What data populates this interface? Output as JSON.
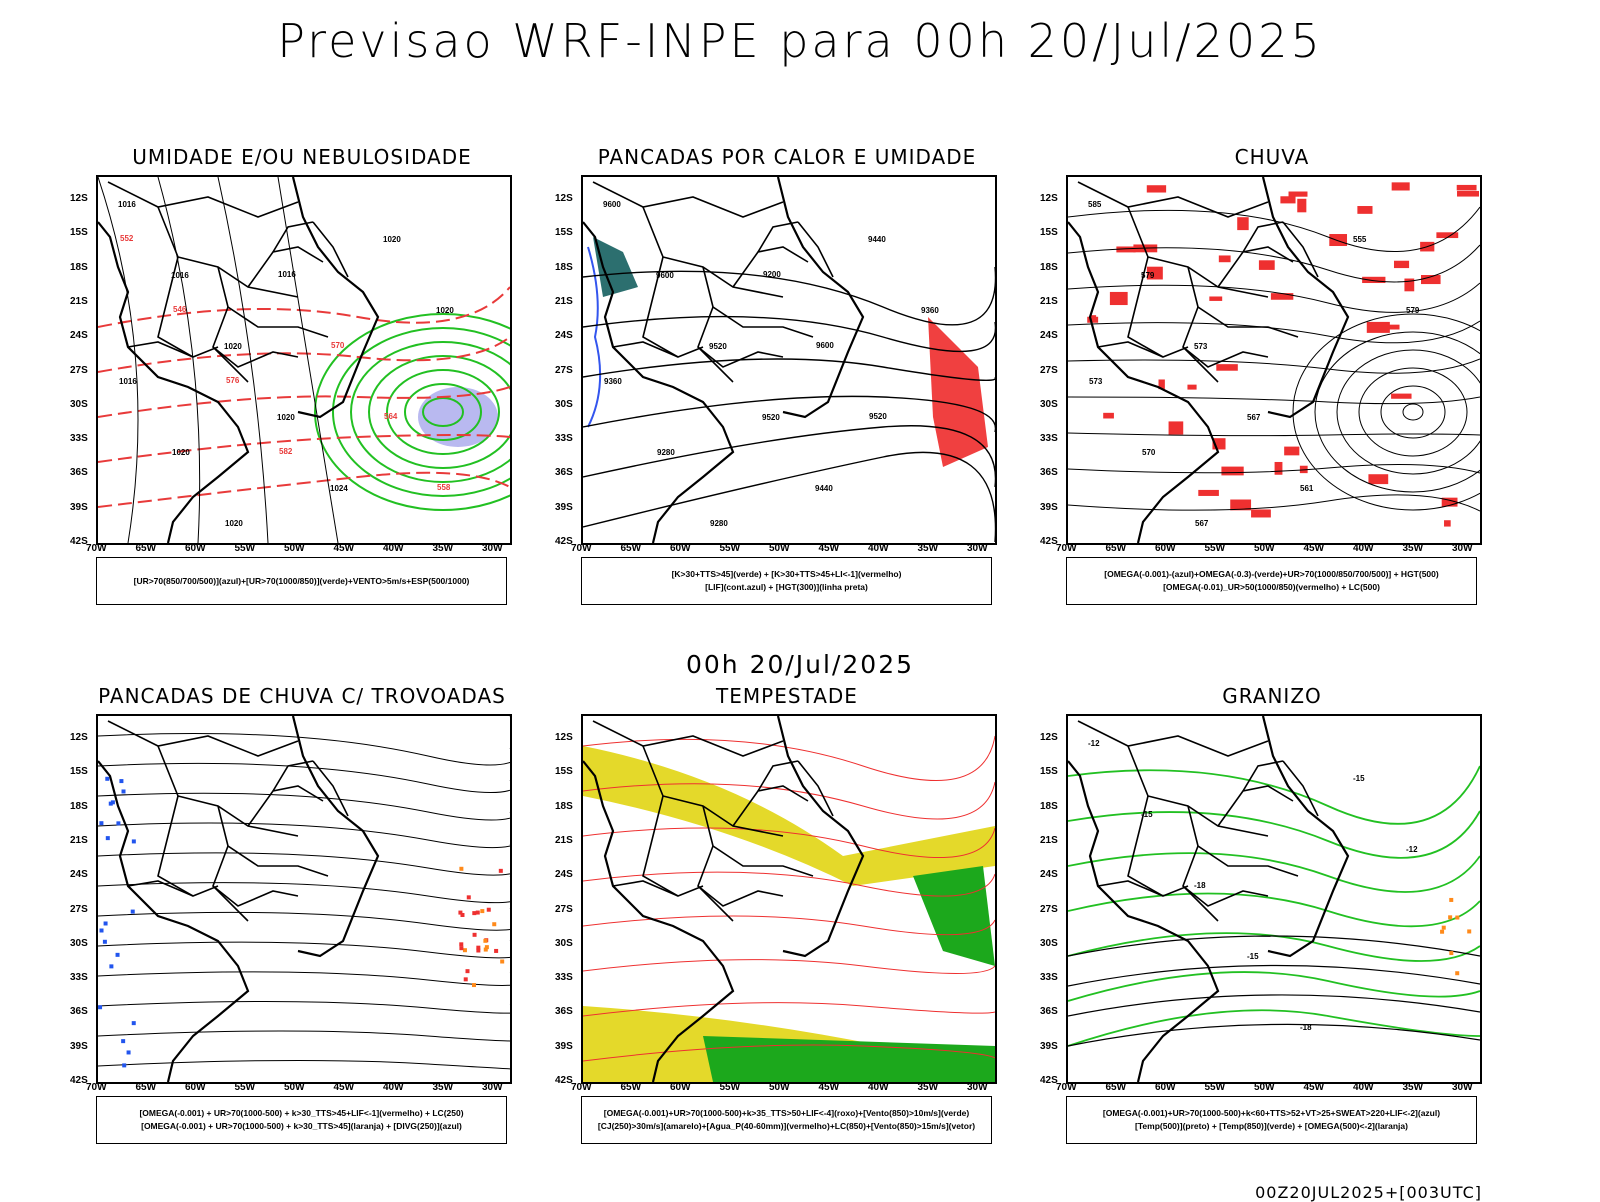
{
  "header": {
    "title": "Previsao WRF-INPE  para 00h 20/Jul/2025"
  },
  "middle_date": "00h 20/Jul/2025",
  "footer": "00Z20JUL2025+[003UTC]",
  "axes": {
    "lat_labels": [
      "12S",
      "15S",
      "18S",
      "21S",
      "24S",
      "27S",
      "30S",
      "33S",
      "36S",
      "39S",
      "42S"
    ],
    "lon_labels": [
      "70W",
      "65W",
      "60W",
      "55W",
      "50W",
      "45W",
      "40W",
      "35W",
      "30W"
    ]
  },
  "panels": [
    {
      "id": "p1",
      "title": "UMIDADE E/OU NEBULOSIDADE",
      "legend": [
        "[UR>70(850/700/500)](azul)+[UR>70(1000/850)](verde)+VENTO>5m/s+ESP(500/1000)"
      ],
      "contour_labels": [
        "1016",
        "1016",
        "1020",
        "1020",
        "1024",
        "1020",
        "1020",
        "1016",
        "1020",
        "1020",
        "1016",
        "570",
        "564",
        "558",
        "552",
        "546",
        "576",
        "582"
      ]
    },
    {
      "id": "p2",
      "title": "PANCADAS POR CALOR E UMIDADE",
      "legend": [
        "[K>30+TTS>45](verde) + [K>30+TTS>45+LI<-1](vermelho)",
        "[LIF](cont.azul) + [HGT(300)](linha preta)"
      ],
      "contour_labels": [
        "9600",
        "9600",
        "9520",
        "9520",
        "9440",
        "9440",
        "9360",
        "9360",
        "9280",
        "9280",
        "9200",
        "9600",
        "9520"
      ]
    },
    {
      "id": "p3",
      "title": "CHUVA",
      "legend": [
        "[OMEGA(-0.001)-(azul)+OMEGA(-0.3)-(verde)+UR>70(1000/850/700/500)] + HGT(500)",
        "[OMEGA(-0.01)_UR>50(1000/850)(vermelho) + LC(500)"
      ],
      "contour_labels": [
        "585",
        "579",
        "573",
        "567",
        "561",
        "555",
        "579",
        "573",
        "570",
        "567"
      ]
    },
    {
      "id": "p4",
      "title": "PANCADAS DE CHUVA C/ TROVOADAS",
      "legend": [
        "[OMEGA(-0.001) + UR>70(1000-500) + k>30_TTS>45+LIF<-1](vermelho) + LC(250)",
        "[OMEGA(-0.001) + UR>70(1000-500) + k>30_TTS>45](laranja) + [DIVG(250)](azul)"
      ],
      "contour_labels": []
    },
    {
      "id": "p5",
      "title": "TEMPESTADE",
      "legend": [
        "[OMEGA(-0.001)+UR>70(1000-500)+k>35_TTS>50+LIF<-4](roxo)+[Vento(850)>10m/s](verde)",
        "[CJ(250)>30m/s](amarelo)+[Agua_P(40-60mm)](vermelho)+LC(850)+[Vento(850)>15m/s](vetor)"
      ],
      "contour_labels": []
    },
    {
      "id": "p6",
      "title": "GRANIZO",
      "legend": [
        "[OMEGA(-0.001)+UR>70(1000-500)+k<60+TTS>52+VT>25+SWEAT>220+LIF<-2](azul)",
        "[Temp(500)](preto) + [Temp(850)](verde) + [OMEGA(500)<-2](laranja)"
      ],
      "contour_labels": [
        "-12",
        "-15",
        "-18",
        "-15",
        "-18",
        "-15",
        "-12"
      ]
    }
  ]
}
